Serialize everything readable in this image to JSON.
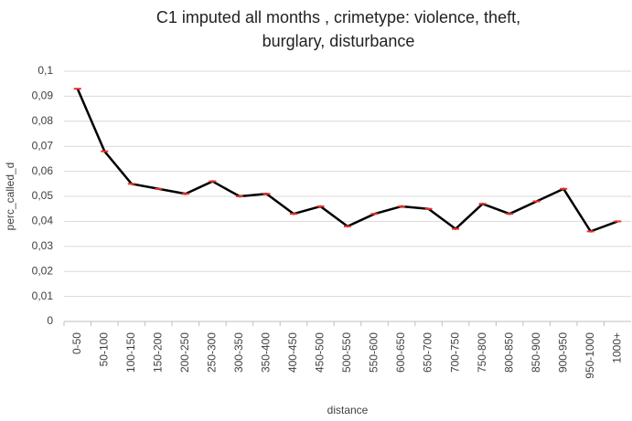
{
  "chart_data": {
    "type": "line",
    "title": [
      "C1 imputed all months , crimetype: violence, theft,",
      "burglary, disturbance"
    ],
    "x_label": "distance",
    "y_label": "perc_called_d",
    "categories": [
      "0-50",
      "50-100",
      "100-150",
      "150-200",
      "200-250",
      "250-300",
      "300-350",
      "350-400",
      "400-450",
      "450-500",
      "500-550",
      "550-600",
      "600-650",
      "650-700",
      "700-750",
      "750-800",
      "800-850",
      "850-900",
      "900-950",
      "950-1000",
      "1000+"
    ],
    "series": [
      {
        "color": "#000000",
        "values": [
          0.093,
          0.068,
          0.055,
          0.053,
          0.051,
          0.056,
          0.05,
          0.051,
          0.043,
          0.046,
          0.038,
          0.043,
          0.046,
          0.045,
          0.037,
          0.047,
          0.043,
          0.048,
          0.053,
          0.036,
          0.04
        ]
      }
    ],
    "marker_color": "#e8332a",
    "ylim": [
      0,
      0.1
    ],
    "yticks": [
      0,
      {
        "value": 0.01,
        "label": "0,01"
      },
      {
        "value": 0.02,
        "label": "0,02"
      },
      {
        "value": 0.03,
        "label": "0,03"
      },
      {
        "value": 0.04,
        "label": "0,04"
      },
      {
        "value": 0.05,
        "label": "0,05"
      },
      {
        "value": 0.06,
        "label": "0,06"
      },
      {
        "value": 0.07,
        "label": "0,07"
      },
      {
        "value": 0.08,
        "label": "0,08"
      },
      {
        "value": 0.09,
        "label": "0,09"
      },
      {
        "value": 0.1,
        "label": "0,1"
      }
    ],
    "grid": true
  }
}
